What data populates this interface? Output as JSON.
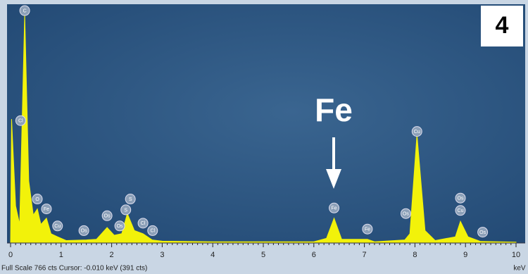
{
  "chart_data": {
    "type": "area",
    "panel_label": "4",
    "annotation": "Fe",
    "x_label": "keV",
    "status": "Full Scale 766 cts  Cursor: -0.010 keV (391 cts)",
    "xlim": [
      0,
      10
    ],
    "ylim": [
      0,
      766
    ],
    "xticks": [
      0,
      1,
      2,
      3,
      4,
      5,
      6,
      7,
      8,
      9,
      10
    ],
    "color": "#f2f20a",
    "series": [
      {
        "x": [
          0,
          0.02,
          0.1,
          0.18,
          0.28,
          0.36,
          0.45,
          0.53,
          0.6,
          0.71,
          0.8,
          0.93,
          1.1,
          1.5,
          1.7,
          1.91,
          2.05,
          2.2,
          2.31,
          2.45,
          2.62,
          2.8,
          3,
          4,
          5,
          6,
          6.25,
          6.4,
          6.55,
          7.06,
          7.2,
          7.8,
          7.9,
          8.04,
          8.2,
          8.4,
          8.8,
          8.9,
          9.05,
          9.3,
          10
        ],
        "values": [
          0,
          400,
          120,
          60,
          740,
          200,
          90,
          110,
          60,
          80,
          30,
          20,
          8,
          10,
          12,
          50,
          25,
          30,
          95,
          40,
          30,
          10,
          6,
          4,
          4,
          4,
          15,
          80,
          12,
          12,
          4,
          10,
          30,
          350,
          40,
          8,
          20,
          70,
          20,
          5,
          3
        ]
      }
    ],
    "peak_labels": [
      {
        "text": "C",
        "x": 0.28,
        "y": 750
      },
      {
        "text": "Cl",
        "x": 0.2,
        "y": 395
      },
      {
        "text": "O",
        "x": 0.53,
        "y": 142
      },
      {
        "text": "Fe",
        "x": 0.71,
        "y": 110
      },
      {
        "text": "Cu",
        "x": 0.93,
        "y": 55
      },
      {
        "text": "Os",
        "x": 1.45,
        "y": 40
      },
      {
        "text": "Os",
        "x": 1.91,
        "y": 88
      },
      {
        "text": "Os",
        "x": 2.16,
        "y": 55
      },
      {
        "text": "S",
        "x": 2.28,
        "y": 107
      },
      {
        "text": "S",
        "x": 2.37,
        "y": 142
      },
      {
        "text": "Cl",
        "x": 2.62,
        "y": 64
      },
      {
        "text": "Cl",
        "x": 2.81,
        "y": 40
      },
      {
        "text": "Fe",
        "x": 6.4,
        "y": 113
      },
      {
        "text": "Fe",
        "x": 7.06,
        "y": 45
      },
      {
        "text": "Os",
        "x": 7.82,
        "y": 95
      },
      {
        "text": "Cu",
        "x": 8.04,
        "y": 360
      },
      {
        "text": "Os",
        "x": 8.9,
        "y": 145
      },
      {
        "text": "Cu",
        "x": 8.9,
        "y": 105
      },
      {
        "text": "Os",
        "x": 9.34,
        "y": 35
      }
    ]
  }
}
